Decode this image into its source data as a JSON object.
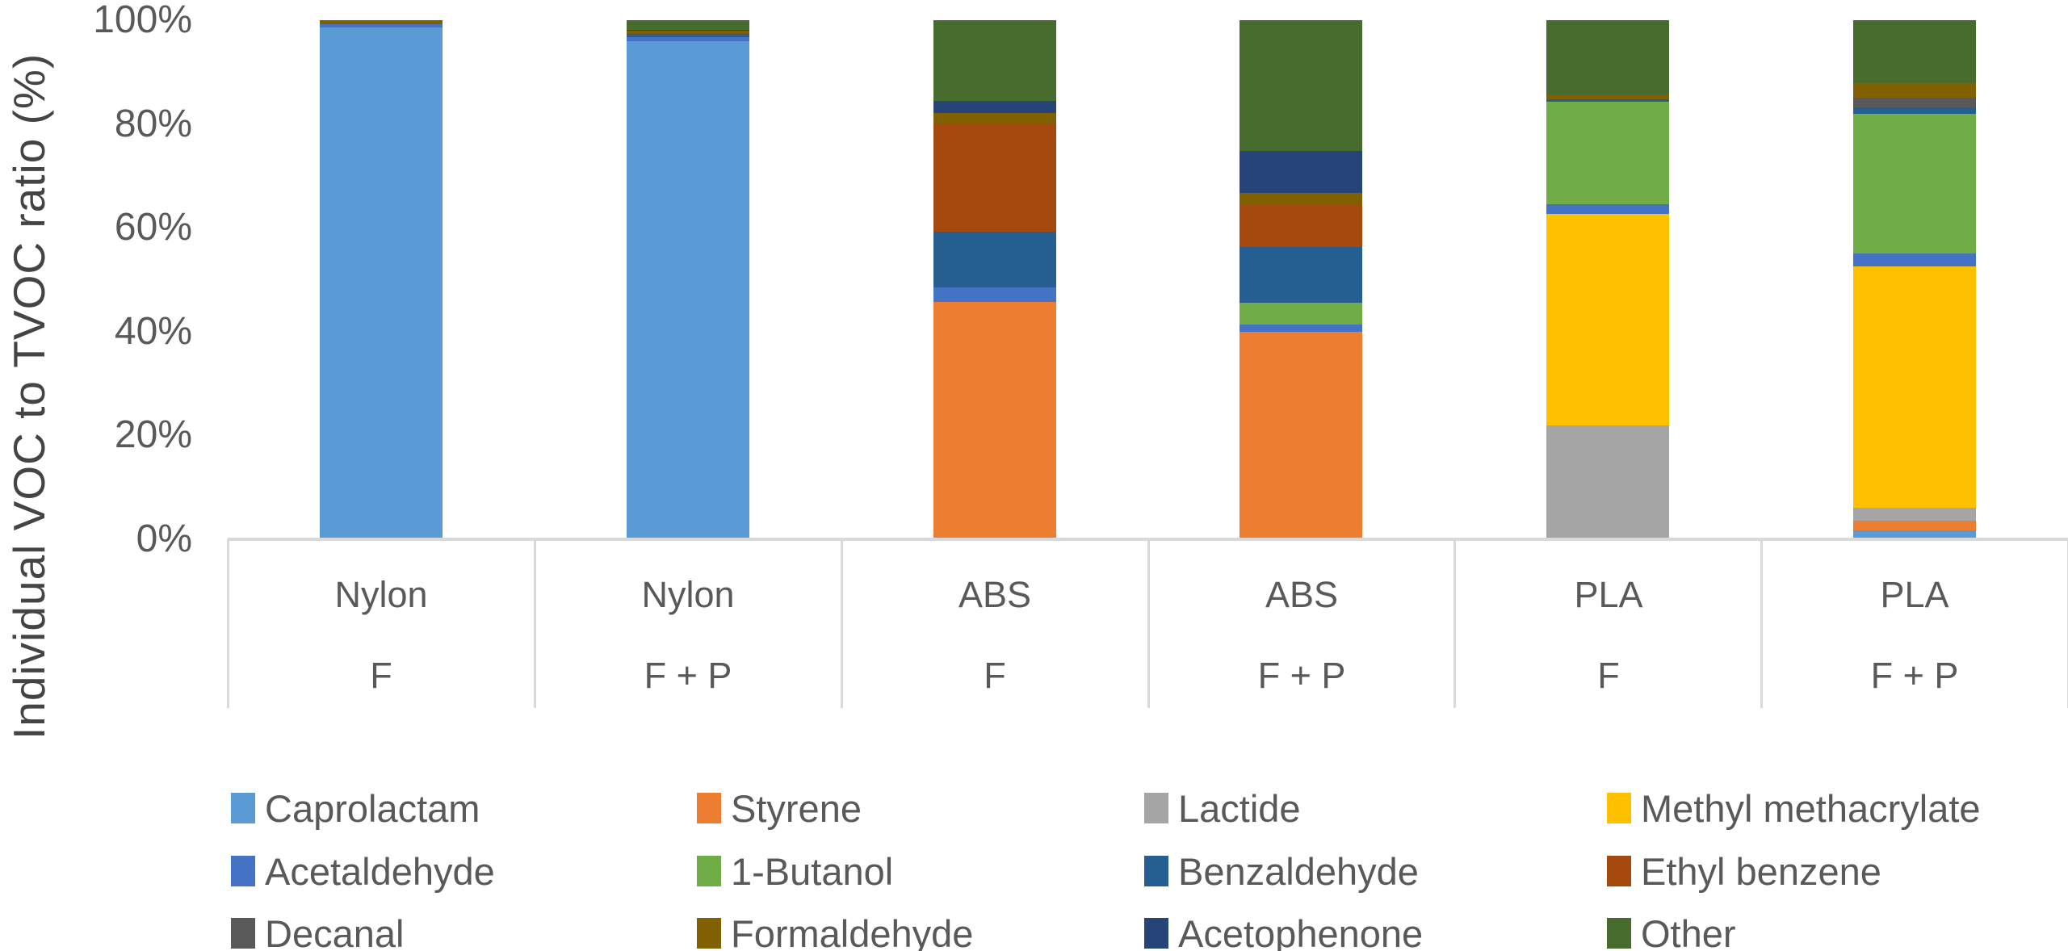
{
  "y_axis": {
    "title": "Individual VOC to TVOC ratio (%)",
    "ticks": [
      "0%",
      "20%",
      "40%",
      "60%",
      "80%",
      "100%"
    ]
  },
  "chart_data": {
    "type": "bar",
    "stacked": true,
    "unit": "percent of TVOC",
    "ylim": [
      0,
      100
    ],
    "grid": false,
    "legend_position": "bottom",
    "categories": [
      {
        "material": "Nylon",
        "condition": "F"
      },
      {
        "material": "Nylon",
        "condition": "F + P"
      },
      {
        "material": "ABS",
        "condition": "F"
      },
      {
        "material": "ABS",
        "condition": "F + P"
      },
      {
        "material": "PLA",
        "condition": "F"
      },
      {
        "material": "PLA",
        "condition": "F + P"
      }
    ],
    "series": [
      {
        "name": "Caprolactam",
        "color": "#5B9BD5",
        "values": [
          98.6,
          96.0,
          0,
          0,
          0,
          1.7
        ]
      },
      {
        "name": "Styrene",
        "color": "#ED7D31",
        "values": [
          0,
          0,
          45.7,
          39.9,
          0,
          1.9
        ]
      },
      {
        "name": "Lactide",
        "color": "#A5A5A5",
        "values": [
          0,
          0,
          0,
          0,
          21.9,
          2.4
        ]
      },
      {
        "name": "Methyl methacrylate",
        "color": "#FFC000",
        "values": [
          0,
          0,
          0,
          0,
          40.8,
          46.6
        ]
      },
      {
        "name": "Acetaldehyde",
        "color": "#4472C4",
        "values": [
          0.6,
          0.8,
          2.8,
          1.4,
          1.9,
          2.4
        ]
      },
      {
        "name": "1-Butanol",
        "color": "#70AD47",
        "values": [
          0,
          0,
          0,
          4.3,
          19.7,
          27.0
        ]
      },
      {
        "name": "Benzaldehyde",
        "color": "#255E91",
        "values": [
          0,
          0.3,
          10.8,
          10.7,
          0.5,
          1.2
        ]
      },
      {
        "name": "Ethyl benzene",
        "color": "#A5490F",
        "values": [
          0,
          0,
          20.7,
          8.3,
          0,
          0
        ]
      },
      {
        "name": "Decanal",
        "color": "#595959",
        "values": [
          0,
          0.4,
          0,
          0,
          0,
          1.9
        ]
      },
      {
        "name": "Formaldehyde",
        "color": "#806000",
        "values": [
          0.8,
          0.5,
          2.1,
          2.1,
          0.7,
          2.8
        ]
      },
      {
        "name": "Acetophenone",
        "color": "#264478",
        "values": [
          0,
          0.1,
          2.3,
          8.1,
          0,
          0
        ]
      },
      {
        "name": "Other",
        "color": "#486C2E",
        "values": [
          0,
          1.9,
          15.6,
          25.2,
          14.5,
          12.1
        ]
      }
    ]
  }
}
